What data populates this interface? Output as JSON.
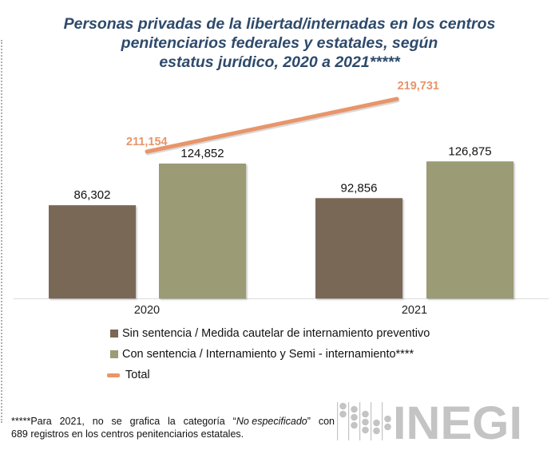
{
  "title": {
    "lines": [
      "Personas privadas de la libertad/internadas en los centros",
      "penitenciarios federales y estatales, según",
      "estatus jurídico, 2020 a 2021*****"
    ]
  },
  "chart_data": {
    "type": "bar",
    "title": "Personas privadas de la libertad/internadas en los centros penitenciarios federales y estatales, según estatus jurídico, 2020 a 2021*****",
    "xlabel": "",
    "ylabel": "",
    "grid": false,
    "categories": [
      "2020",
      "2021"
    ],
    "series": [
      {
        "name": "Sin sentencia / Medida cautelar de internamiento preventivo",
        "type": "bar",
        "color": "#7a6757",
        "values": [
          86302,
          92856
        ],
        "labels": [
          "86,302",
          "92,856"
        ]
      },
      {
        "name": "Con sentencia / Internamiento y Semi - internamiento****",
        "type": "bar",
        "color": "#9b9b75",
        "values": [
          124852,
          126875
        ],
        "labels": [
          "124,852",
          "126,875"
        ]
      },
      {
        "name": "Total",
        "type": "line",
        "color": "#e8956a",
        "values": [
          211154,
          219731
        ],
        "labels": [
          "211,154",
          "219,731"
        ]
      }
    ],
    "legend_position": "bottom-left"
  },
  "footnote": {
    "line1_parts": [
      "*****Para",
      "2021,",
      "no",
      "se",
      "grafica",
      "la",
      "categoría"
    ],
    "quote_open": "“",
    "italic": "No especificado",
    "quote_close": "”",
    "line1_end": "con",
    "line2": "689 registros en los centros penitenciarios estatales."
  },
  "logo": {
    "text": "INEGI",
    "color": "#c4c4c4"
  }
}
